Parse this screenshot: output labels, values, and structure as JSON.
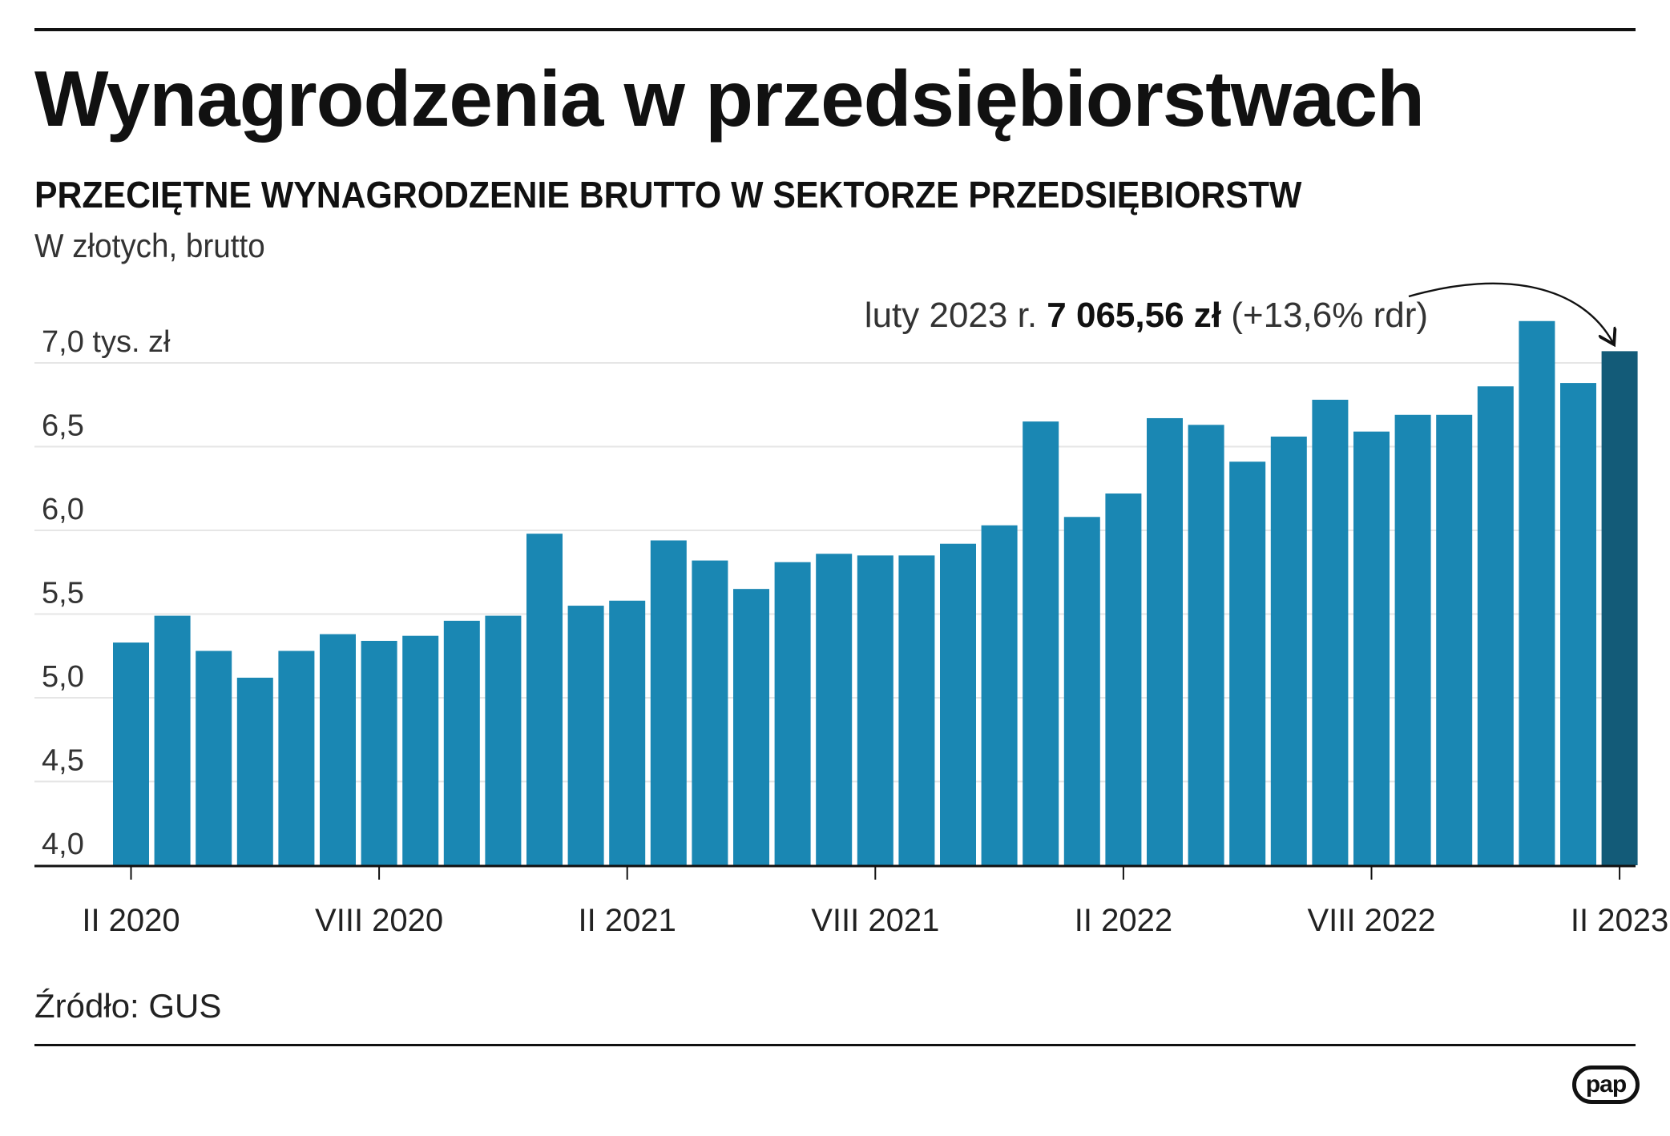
{
  "title": "Wynagrodzenia w przedsiębiorstwach",
  "subtitle": "PRZECIĘTNE WYNAGRODZENIE BRUTTO W SEKTORZE PRZEDSIĘBIORSTW",
  "unit_label": "W złotych, brutto",
  "source": "Źródło: GUS",
  "logo_text": "pap",
  "colors": {
    "bar": "#1a87b3",
    "highlight_bar": "#135b78",
    "grid": "#e6e6e6",
    "axis": "#111111"
  },
  "chart_data": {
    "type": "bar",
    "title": "PRZECIĘTNE WYNAGRODZENIE BRUTTO W SEKTORZE PRZEDSIĘBIORSTW",
    "ylabel": "W złotych, brutto",
    "xlabel": "",
    "ylim": [
      4.0,
      7.0
    ],
    "yticks": [
      4.0,
      4.5,
      5.0,
      5.5,
      6.0,
      6.5,
      7.0
    ],
    "ytick_labels": [
      "4,0",
      "4,5",
      "5,0",
      "5,5",
      "6,0",
      "6,5",
      "7,0 tys. zł"
    ],
    "grid": true,
    "xtick_labels": [
      {
        "index": 0,
        "label": "II 2020"
      },
      {
        "index": 6,
        "label": "VIII 2020"
      },
      {
        "index": 12,
        "label": "II 2021"
      },
      {
        "index": 18,
        "label": "VIII 2021"
      },
      {
        "index": 24,
        "label": "II 2022"
      },
      {
        "index": 30,
        "label": "VIII 2022"
      },
      {
        "index": 36,
        "label": "II 2023"
      }
    ],
    "values": [
      5.33,
      5.49,
      5.28,
      5.12,
      5.28,
      5.38,
      5.34,
      5.37,
      5.46,
      5.49,
      5.98,
      5.55,
      5.58,
      5.94,
      5.82,
      5.65,
      5.81,
      5.86,
      5.85,
      5.85,
      5.92,
      6.03,
      6.65,
      6.08,
      6.22,
      6.67,
      6.63,
      6.41,
      6.56,
      6.78,
      6.59,
      6.69,
      6.69,
      6.86,
      7.25,
      6.88,
      7.07
    ],
    "highlight_index": 36,
    "annotation": {
      "prefix": "luty 2023 r. ",
      "value": "7 065,56 zł",
      "suffix": " (+13,6% rdr)"
    }
  }
}
